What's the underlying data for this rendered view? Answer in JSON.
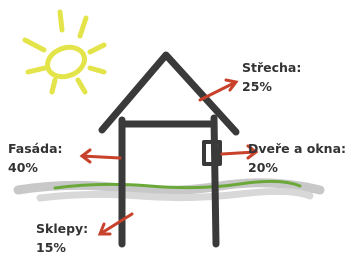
{
  "labels": [
    {
      "name": "Střecha:",
      "value": "25%"
    },
    {
      "name": "Fasáda:",
      "value": "40%"
    },
    {
      "name": "Dveře a okna:",
      "value": "20%"
    },
    {
      "name": "Sklepy:",
      "value": "15%"
    }
  ]
}
